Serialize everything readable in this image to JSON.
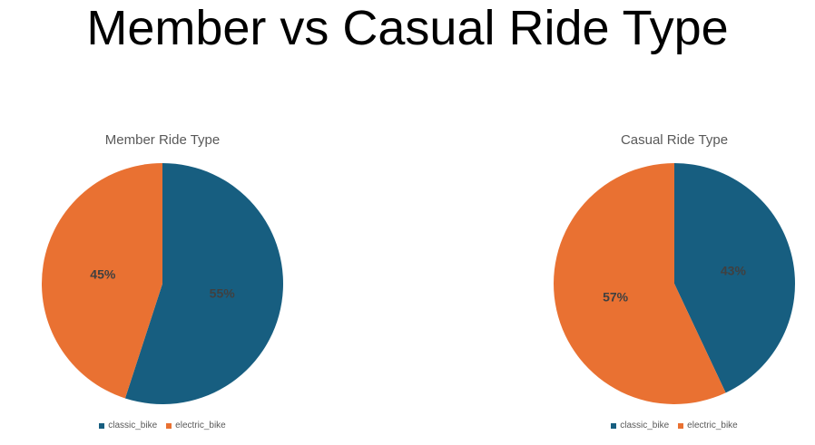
{
  "page": {
    "title": "Member vs Casual Ride Type"
  },
  "colors": {
    "classic_bike": "#175E80",
    "electric_bike": "#E97132"
  },
  "chart_data": [
    {
      "type": "pie",
      "title": "Member Ride Type",
      "categories": [
        "classic_bike",
        "electric_bike"
      ],
      "values": [
        55,
        45
      ],
      "labels": [
        "55%",
        "45%"
      ],
      "legend": "bottom"
    },
    {
      "type": "pie",
      "title": "Casual Ride Type",
      "categories": [
        "classic_bike",
        "electric_bike"
      ],
      "values": [
        43,
        57
      ],
      "labels": [
        "43%",
        "57%"
      ],
      "legend": "bottom"
    }
  ]
}
